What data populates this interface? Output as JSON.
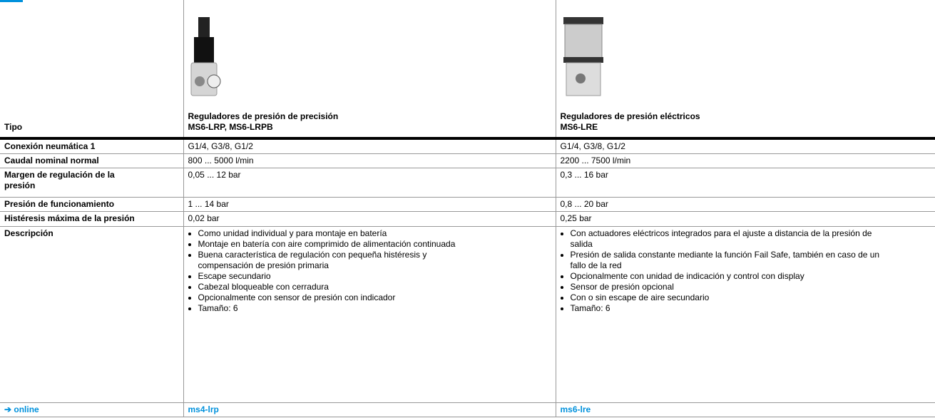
{
  "header": {
    "tipo": "Tipo",
    "products": [
      {
        "title": "Reguladores de presión de precisión",
        "model": "MS6-LRP, MS6-LRPB"
      },
      {
        "title": "Reguladores de presión eléctricos",
        "model": "MS6-LRE"
      }
    ]
  },
  "rows": [
    {
      "label": "Conexión neumática 1",
      "values": [
        "G1/4, G3/8, G1/2",
        "G1/4, G3/8, G1/2"
      ]
    },
    {
      "label": "Caudal nominal normal",
      "values": [
        "800 ... 5000 l/min",
        "2200 ... 7500 l/min"
      ]
    },
    {
      "label": "Margen de regulación de la presión",
      "values": [
        "0,05 ... 12 bar",
        "0,3 ... 16 bar"
      ]
    },
    {
      "label": "Presión de funcionamiento",
      "values": [
        "1 ... 14 bar",
        "0,8 ... 20 bar"
      ]
    },
    {
      "label": "Histéresis máxima de la presión",
      "values": [
        "0,02 bar",
        "0,25 bar"
      ]
    }
  ],
  "description": {
    "label": "Descripción",
    "items": [
      [
        "Como unidad individual y para montaje en batería",
        "Montaje en batería con aire comprimido de alimentación continuada",
        "Buena característica de regulación con pequeña histéresis y compensación de presión primaria",
        "Escape secundario",
        "Cabezal bloqueable con cerradura",
        "Opcionalmente con sensor de presión con indicador",
        "Tamaño: 6"
      ],
      [
        "Con actuadores eléctricos integrados para el ajuste a distancia de la presión de salida",
        "Presión de salida constante mediante la función Fail Safe, también en caso de un fallo de la red",
        "Opcionalmente con unidad de indicación y control con display",
        "Sensor de presión opcional",
        "Con o sin escape de aire secundario",
        "Tamaño: 6"
      ]
    ]
  },
  "footer": {
    "label": "➔ online",
    "links": [
      "ms4-lrp",
      "ms6-lre"
    ]
  }
}
